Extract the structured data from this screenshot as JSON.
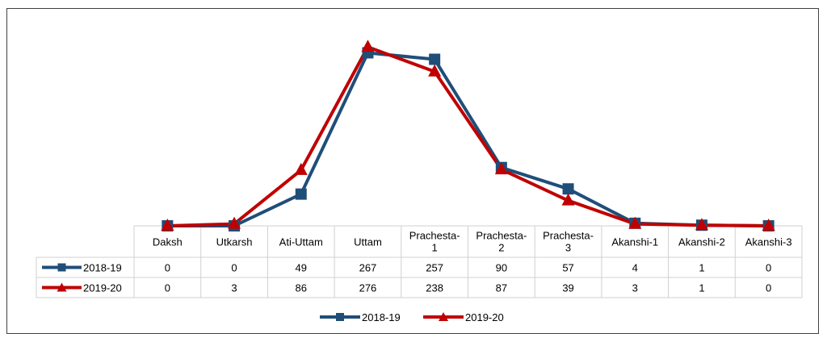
{
  "chart_data": {
    "type": "line",
    "title": "",
    "xlabel": "",
    "ylabel": "",
    "ylim": [
      0,
      290
    ],
    "grid": false,
    "legend_position": "bottom",
    "categories": [
      [
        "Daksh"
      ],
      [
        "Utkarsh"
      ],
      [
        "Ati-Uttam"
      ],
      [
        "Uttam"
      ],
      [
        "Prachesta-",
        "1"
      ],
      [
        "Prachesta-",
        "2"
      ],
      [
        "Prachesta-",
        "3"
      ],
      [
        "Akanshi-1"
      ],
      [
        "Akanshi-2"
      ],
      [
        "Akanshi-3"
      ]
    ],
    "series": [
      {
        "name": "2018-19",
        "color": "#1f4e79",
        "marker": "square",
        "values": [
          0,
          0,
          49,
          267,
          257,
          90,
          57,
          4,
          1,
          0
        ]
      },
      {
        "name": "2019-20",
        "color": "#c00000",
        "marker": "triangle",
        "values": [
          0,
          3,
          86,
          276,
          238,
          87,
          39,
          3,
          1,
          0
        ]
      }
    ]
  }
}
